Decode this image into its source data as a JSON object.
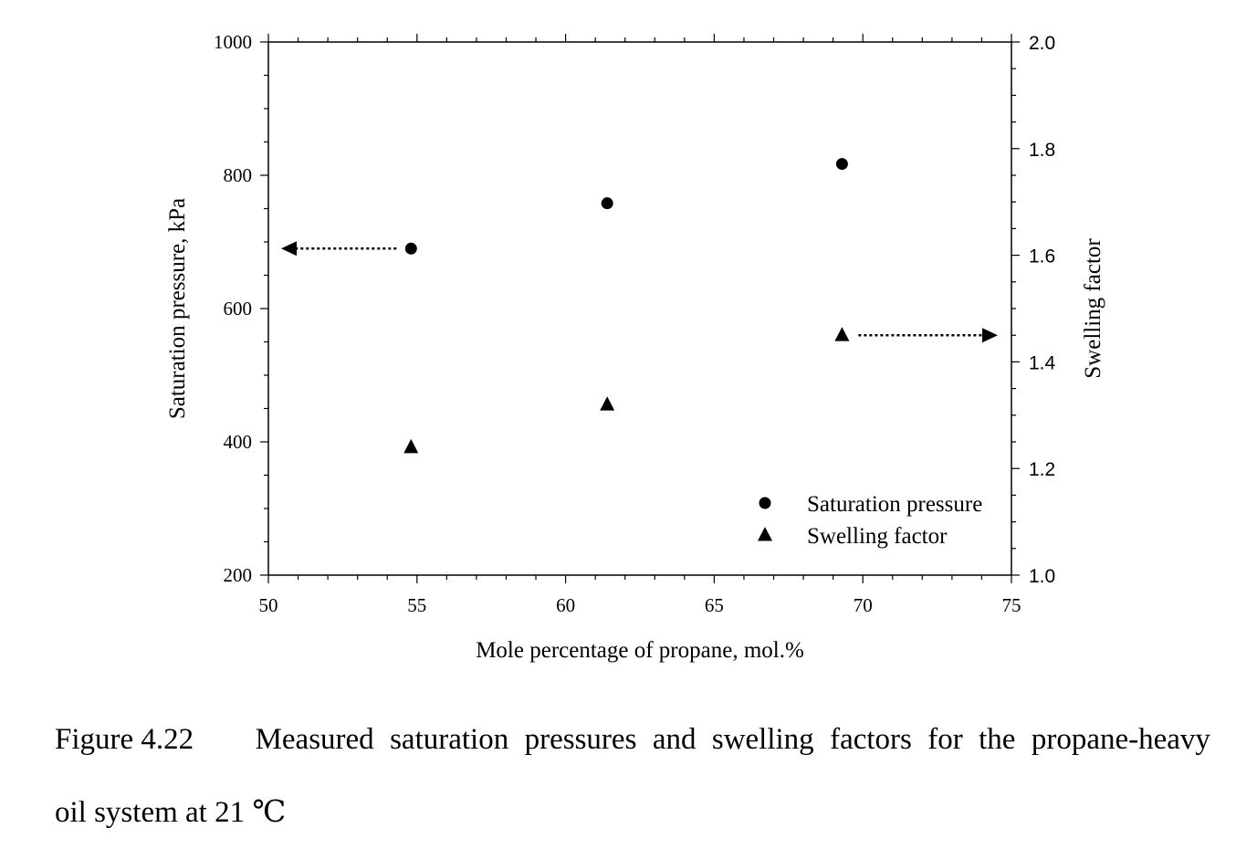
{
  "chart_data": {
    "type": "scatter",
    "xlabel": "Mole percentage of propane, mol.%",
    "ylabel_left": "Saturation pressure, kPa",
    "ylabel_right": "Swelling factor",
    "xlim": [
      50,
      75
    ],
    "ylim_left": [
      200,
      1000
    ],
    "ylim_right": [
      1.0,
      2.0
    ],
    "x_ticks": [
      "50",
      "55",
      "60",
      "65",
      "70",
      "75"
    ],
    "y_left_ticks": [
      "200",
      "400",
      "600",
      "800",
      "1000"
    ],
    "y_right_ticks": [
      "1.0",
      "1.2",
      "1.4",
      "1.6",
      "1.8",
      "2.0"
    ],
    "grid": false,
    "legend_position": "bottom-right",
    "series": [
      {
        "name": "Saturation pressure",
        "axis": "left",
        "marker": "circle",
        "x": [
          54.8,
          61.4,
          69.3
        ],
        "y": [
          690,
          758,
          817
        ]
      },
      {
        "name": "Swelling factor",
        "axis": "right",
        "marker": "triangle",
        "x": [
          54.8,
          61.4,
          69.3
        ],
        "y": [
          1.24,
          1.32,
          1.45
        ]
      }
    ]
  },
  "caption": {
    "number": "Figure 4.22",
    "line1_words": [
      "Measured",
      "saturation",
      "pressures",
      "and",
      "swelling",
      "factors",
      "for",
      "the",
      "propane-heavy"
    ],
    "line2": "oil system at 21 ℃"
  }
}
